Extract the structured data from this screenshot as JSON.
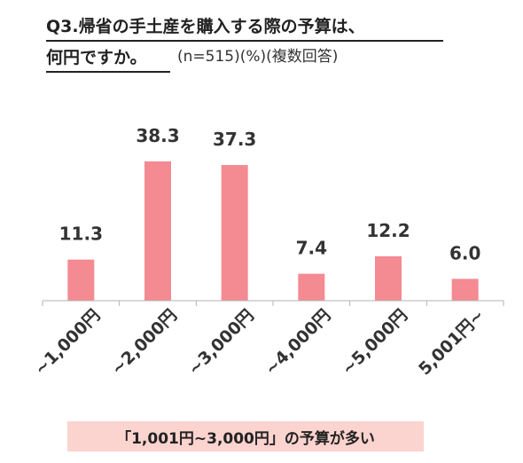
{
  "title": {
    "line1": "Q3.帰省の手土産を購入する際の予算は、",
    "line2": "何円ですか。",
    "meta": "(n=515)(%)(複数回答)"
  },
  "chart_data": {
    "type": "bar",
    "categories": [
      "~1,000円",
      "~2,000円",
      "~3,000円",
      "~4,000円",
      "~5,000円",
      "5,001円~"
    ],
    "values": [
      11.3,
      38.3,
      37.3,
      7.4,
      12.2,
      6.0
    ],
    "value_labels": [
      "11.3",
      "38.3",
      "37.3",
      "7.4",
      "12.2",
      "6.0"
    ],
    "ylim": [
      0,
      40
    ],
    "grid": false,
    "bar_color": "#f48a92"
  },
  "callout": {
    "text": "「1,001円~3,000円」の予算が多い",
    "bg_color": "#fbd3cf"
  }
}
